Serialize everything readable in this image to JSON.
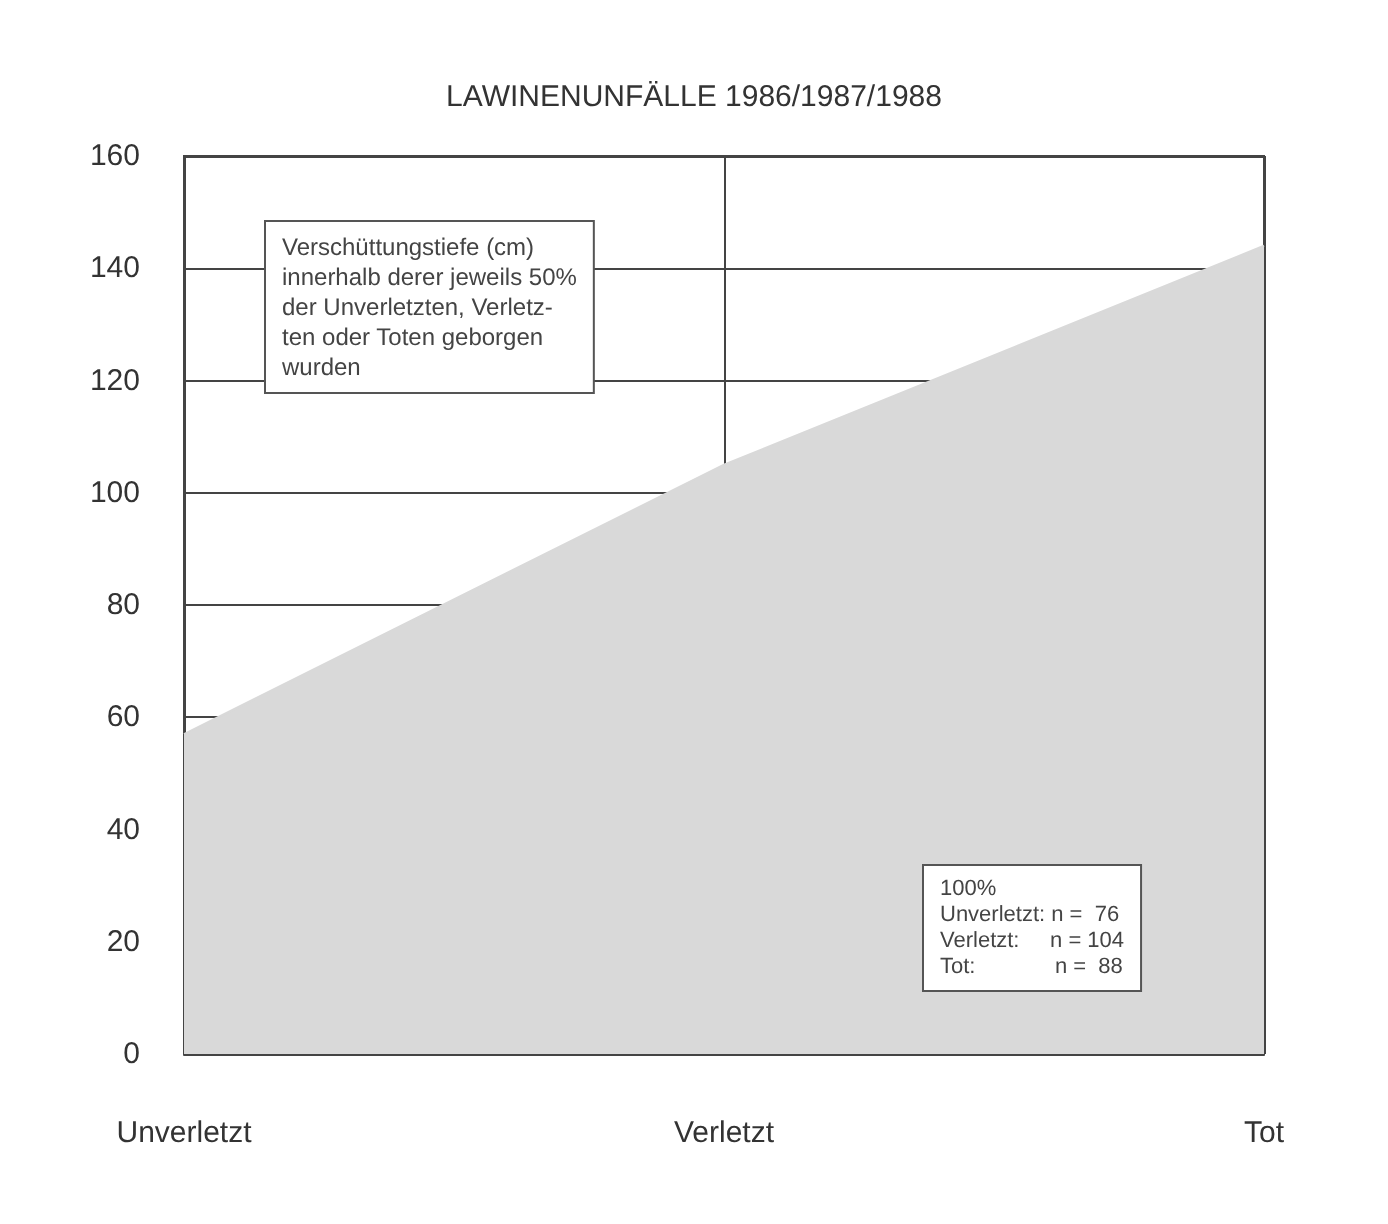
{
  "chart_data": {
    "type": "area",
    "title": "LAWINENUNFÄLLE 1986/1987/1988",
    "categories": [
      "Unverletzt",
      "Verletzt",
      "Tot"
    ],
    "series": [
      {
        "color": "#d9d9d9",
        "values": [
          57,
          105,
          144
        ]
      }
    ],
    "ylim": [
      0,
      160
    ],
    "yticks": [
      0,
      20,
      40,
      60,
      80,
      100,
      120,
      140,
      160
    ],
    "grid": true,
    "marker": "none",
    "annotations": [
      "Verschüttungstiefe (cm)\ninnerhalb derer jeweils 50%\nder Unverletzten, Verletz-\nten oder Toten geborgen\nwurden",
      "100%\nUnverletzt: n =  76\nVerletzt:     n = 104\nTot:             n =  88"
    ]
  }
}
